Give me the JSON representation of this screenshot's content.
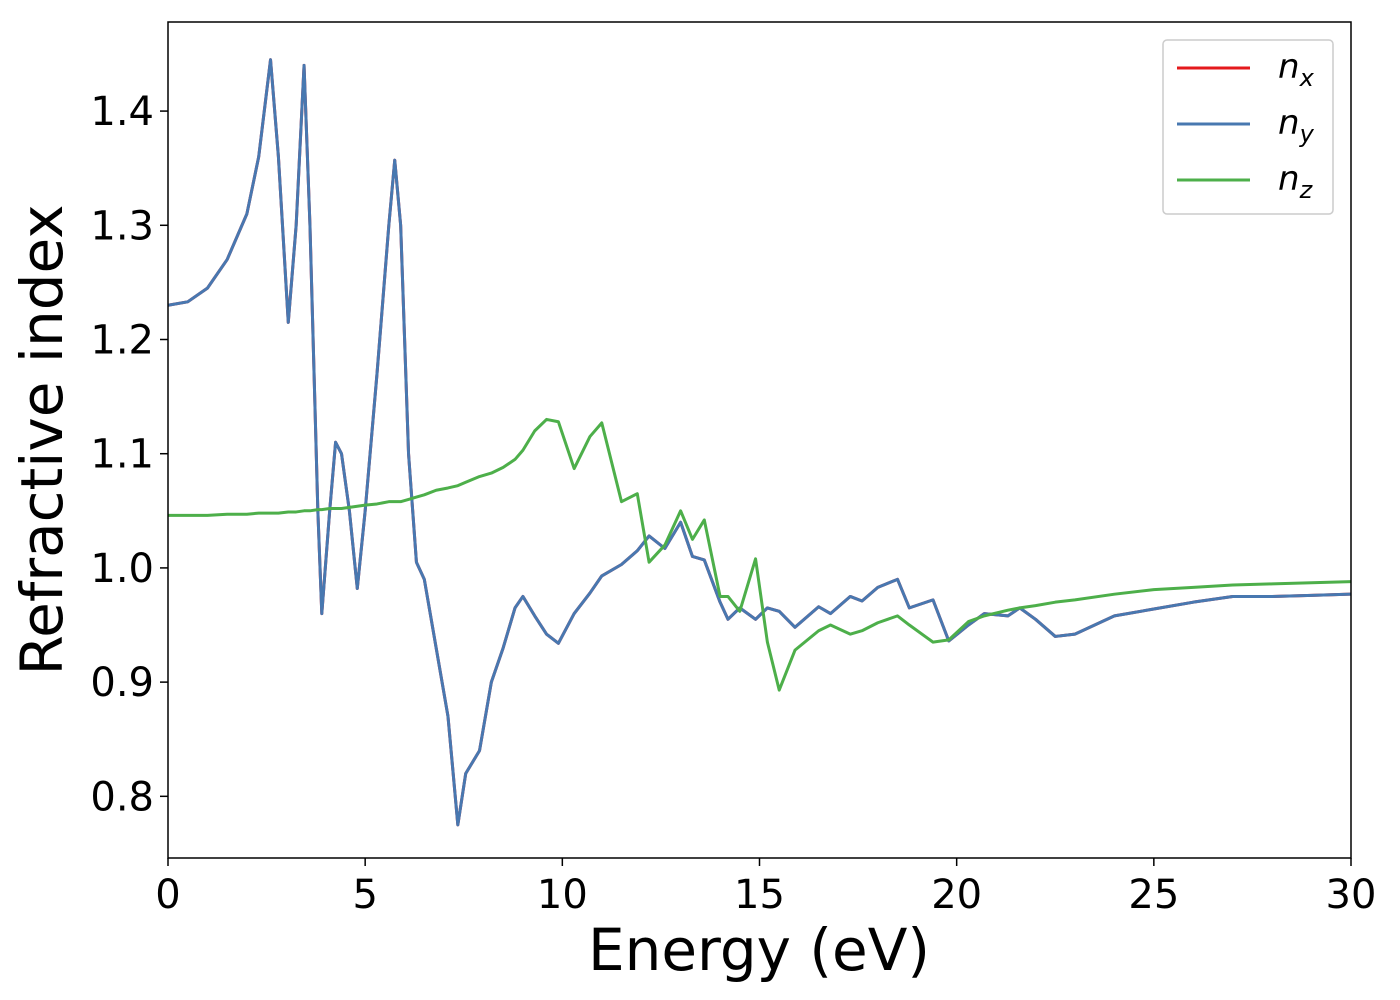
{
  "chart_data": {
    "type": "line",
    "xlabel": "Energy (eV)",
    "ylabel": "Refractive index",
    "x": [
      0,
      0.5,
      1,
      1.5,
      2,
      2.3,
      2.6,
      2.8,
      3.05,
      3.25,
      3.45,
      3.6,
      3.8,
      3.9,
      4.1,
      4.25,
      4.4,
      4.6,
      4.8,
      5,
      5.3,
      5.6,
      5.75,
      5.9,
      6.1,
      6.3,
      6.5,
      6.8,
      7.1,
      7.35,
      7.55,
      7.9,
      8.2,
      8.5,
      8.8,
      9,
      9.3,
      9.6,
      9.9,
      10.3,
      10.7,
      11,
      11.5,
      11.9,
      12.2,
      12.6,
      13,
      13.3,
      13.6,
      14,
      14.2,
      14.5,
      14.9,
      15.2,
      15.5,
      15.9,
      16.5,
      16.8,
      17.3,
      17.6,
      18,
      18.5,
      18.8,
      19.4,
      19.8,
      20.3,
      20.7,
      21.3,
      21.6,
      22,
      22.5,
      23,
      24,
      25,
      26,
      27,
      28,
      29,
      30
    ],
    "series": [
      {
        "name": "nx",
        "color": "#e41a1c",
        "values": [
          1.23,
          1.233,
          1.245,
          1.27,
          1.31,
          1.36,
          1.445,
          1.36,
          1.215,
          1.3,
          1.44,
          1.3,
          1.05,
          0.96,
          1.05,
          1.11,
          1.1,
          1.05,
          0.982,
          1.05,
          1.17,
          1.3,
          1.357,
          1.3,
          1.1,
          1.005,
          0.99,
          0.93,
          0.87,
          0.775,
          0.82,
          0.84,
          0.9,
          0.93,
          0.965,
          0.975,
          0.958,
          0.942,
          0.934,
          0.96,
          0.978,
          0.993,
          1.003,
          1.015,
          1.028,
          1.017,
          1.04,
          1.01,
          1.007,
          0.97,
          0.955,
          0.965,
          0.955,
          0.965,
          0.962,
          0.948,
          0.966,
          0.96,
          0.975,
          0.971,
          0.983,
          0.99,
          0.965,
          0.972,
          0.936,
          0.95,
          0.96,
          0.958,
          0.965,
          0.955,
          0.94,
          0.942,
          0.958,
          0.964,
          0.97,
          0.975,
          0.975,
          0.976,
          0.977
        ]
      },
      {
        "name": "ny",
        "color": "#4878b0",
        "values": [
          1.23,
          1.233,
          1.245,
          1.27,
          1.31,
          1.36,
          1.445,
          1.36,
          1.215,
          1.3,
          1.44,
          1.3,
          1.05,
          0.96,
          1.05,
          1.11,
          1.1,
          1.05,
          0.982,
          1.05,
          1.17,
          1.3,
          1.357,
          1.3,
          1.1,
          1.005,
          0.99,
          0.93,
          0.87,
          0.775,
          0.82,
          0.84,
          0.9,
          0.93,
          0.965,
          0.975,
          0.958,
          0.942,
          0.934,
          0.96,
          0.978,
          0.993,
          1.003,
          1.015,
          1.028,
          1.017,
          1.04,
          1.01,
          1.007,
          0.97,
          0.955,
          0.965,
          0.955,
          0.965,
          0.962,
          0.948,
          0.966,
          0.96,
          0.975,
          0.971,
          0.983,
          0.99,
          0.965,
          0.972,
          0.936,
          0.95,
          0.96,
          0.958,
          0.965,
          0.955,
          0.94,
          0.942,
          0.958,
          0.964,
          0.97,
          0.975,
          0.975,
          0.976,
          0.977
        ]
      },
      {
        "name": "nz",
        "color": "#4daf4a",
        "values": [
          1.046,
          1.046,
          1.046,
          1.047,
          1.047,
          1.048,
          1.048,
          1.048,
          1.049,
          1.049,
          1.05,
          1.05,
          1.051,
          1.051,
          1.052,
          1.052,
          1.052,
          1.053,
          1.054,
          1.055,
          1.056,
          1.058,
          1.058,
          1.058,
          1.06,
          1.062,
          1.064,
          1.068,
          1.07,
          1.072,
          1.075,
          1.08,
          1.083,
          1.088,
          1.095,
          1.103,
          1.12,
          1.13,
          1.128,
          1.087,
          1.115,
          1.127,
          1.058,
          1.065,
          1.005,
          1.02,
          1.05,
          1.025,
          1.042,
          0.975,
          0.975,
          0.962,
          1.008,
          0.935,
          0.893,
          0.928,
          0.945,
          0.95,
          0.942,
          0.945,
          0.952,
          0.958,
          0.95,
          0.935,
          0.937,
          0.953,
          0.958,
          0.963,
          0.965,
          0.967,
          0.97,
          0.972,
          0.977,
          0.981,
          0.983,
          0.985,
          0.986,
          0.987,
          0.988
        ]
      }
    ],
    "xlim": [
      0,
      30
    ],
    "xticks": [
      0,
      5,
      10,
      15,
      20,
      25,
      30
    ],
    "ylim": [
      0.746,
      1.478
    ],
    "yticks": [
      0.8,
      0.9,
      {
        "value": 1,
        "label": "1.0"
      },
      1.1,
      1.2,
      1.3,
      1.4
    ],
    "legend": "upper right",
    "grid": false
  }
}
